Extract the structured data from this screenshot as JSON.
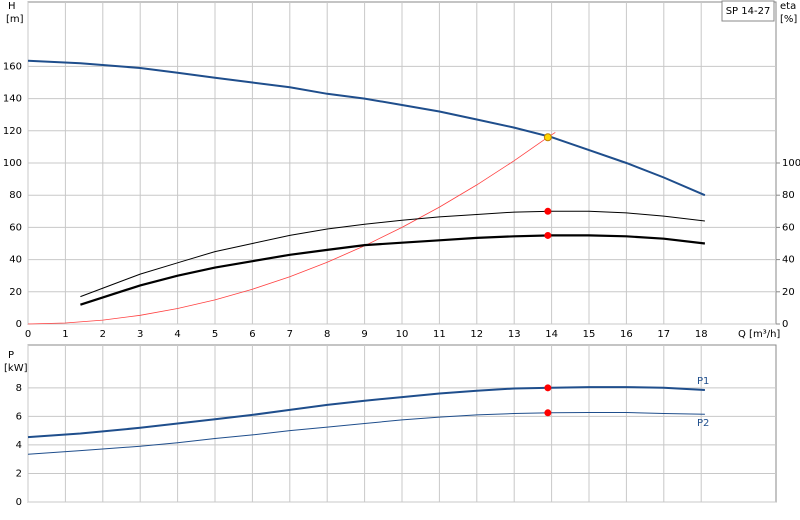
{
  "chart_data": [
    {
      "type": "line",
      "ylabel": "H",
      "yunit": "[m]",
      "y2label": "eta",
      "y2unit": "[%]",
      "xlabel": "Q [m³/h]",
      "annotation": "SP 14-27",
      "xlim": [
        0,
        20
      ],
      "xticks": [
        0,
        1,
        2,
        3,
        4,
        5,
        6,
        7,
        8,
        9,
        10,
        11,
        12,
        13,
        14,
        15,
        16,
        17,
        18
      ],
      "ylim": [
        0,
        200
      ],
      "yticks": [
        0,
        20,
        40,
        60,
        80,
        100,
        120,
        140,
        160
      ],
      "y2lim": [
        0,
        200
      ],
      "y2ticks": [
        0,
        20,
        40,
        60,
        80,
        100
      ],
      "grid": true,
      "series": [
        {
          "color": "#1f4e8c",
          "width": 2,
          "x": [
            0,
            1.4,
            3,
            4,
            5,
            6,
            7,
            8,
            9,
            10,
            11,
            12,
            13,
            14,
            15,
            16,
            17,
            18.1
          ],
          "values": [
            163.5,
            162,
            159,
            156,
            153,
            150,
            147,
            143,
            140,
            136,
            132,
            127,
            122,
            116,
            108,
            100,
            91,
            80
          ]
        },
        {
          "color": "#ff4040",
          "width": 0.8,
          "x": [
            0,
            1,
            2,
            3,
            4,
            5,
            6,
            7,
            8,
            9,
            10,
            11,
            12,
            13,
            13.9,
            14.1
          ],
          "values": [
            0,
            0.6,
            2.4,
            5.4,
            9.6,
            15,
            21.6,
            29.4,
            38.4,
            48.6,
            60,
            72.6,
            86.4,
            101.4,
            116,
            119
          ]
        },
        {
          "color": "#000000",
          "width": 1,
          "axis": "y2",
          "x": [
            1.4,
            3,
            4,
            5,
            6,
            7,
            8,
            9,
            10,
            11,
            12,
            13,
            14,
            15,
            16,
            17,
            18.1
          ],
          "values": [
            17,
            31,
            38,
            45,
            50,
            55,
            59,
            62,
            64.5,
            66.5,
            68,
            69.5,
            70,
            70,
            69,
            67,
            64
          ]
        },
        {
          "color": "#000000",
          "width": 2.2,
          "axis": "y2",
          "x": [
            1.4,
            3,
            4,
            5,
            6,
            7,
            8,
            9,
            10,
            11,
            12,
            13,
            14,
            15,
            16,
            17,
            18.1
          ],
          "values": [
            12,
            24,
            30,
            35,
            39,
            43,
            46,
            49,
            50.5,
            52,
            53.5,
            54.5,
            55,
            55,
            54.5,
            53,
            50
          ]
        },
        {
          "color": "#ffd700",
          "marker": true,
          "x": [
            13.9
          ],
          "values": [
            116
          ]
        },
        {
          "color": "#ff0000",
          "marker": true,
          "axis": "y2",
          "x": [
            13.9,
            13.9
          ],
          "values": [
            70,
            55
          ]
        }
      ]
    },
    {
      "type": "line",
      "ylabel": "P",
      "yunit": "[kW]",
      "ylim": [
        0,
        11
      ],
      "yticks": [
        0,
        2,
        4,
        6,
        8
      ],
      "grid": true,
      "series": [
        {
          "name": "P1",
          "color": "#1f4e8c",
          "width": 2,
          "x": [
            0,
            1.4,
            3,
            4,
            5,
            6,
            7,
            8,
            9,
            10,
            11,
            12,
            13,
            14,
            15,
            16,
            17,
            18.1
          ],
          "values": [
            4.55,
            4.8,
            5.2,
            5.5,
            5.8,
            6.1,
            6.45,
            6.8,
            7.1,
            7.35,
            7.6,
            7.8,
            7.95,
            8.0,
            8.05,
            8.05,
            8.0,
            7.85
          ]
        },
        {
          "name": "P2",
          "color": "#1f4e8c",
          "width": 1,
          "x": [
            0,
            1.4,
            3,
            4,
            5,
            6,
            7,
            8,
            9,
            10,
            11,
            12,
            13,
            14,
            15,
            16,
            17,
            18.1
          ],
          "values": [
            3.35,
            3.6,
            3.9,
            4.15,
            4.45,
            4.7,
            5.0,
            5.25,
            5.5,
            5.75,
            5.95,
            6.1,
            6.2,
            6.25,
            6.27,
            6.27,
            6.2,
            6.15
          ]
        },
        {
          "color": "#ff0000",
          "marker": true,
          "x": [
            13.9,
            13.9
          ],
          "values": [
            8.0,
            6.25
          ]
        }
      ]
    }
  ]
}
